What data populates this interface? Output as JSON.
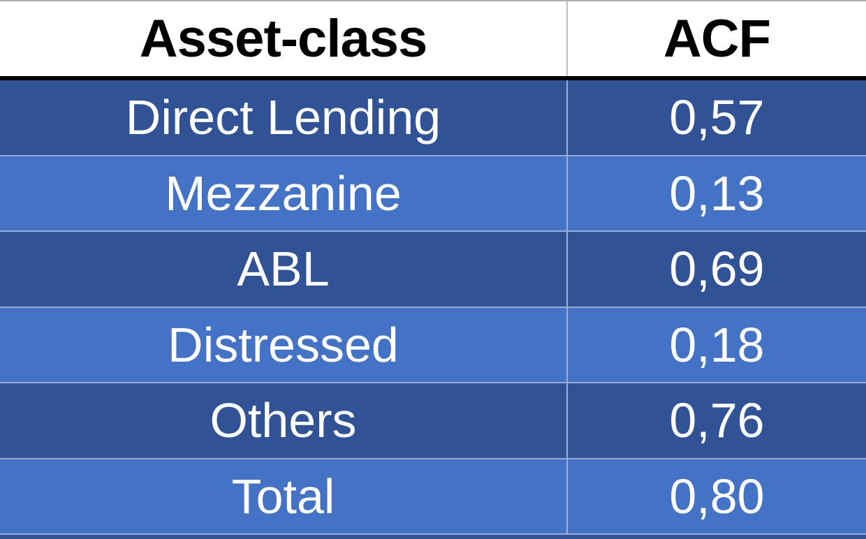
{
  "chart_data": {
    "type": "table",
    "title": "",
    "columns": [
      "Asset-class",
      "ACF"
    ],
    "rows": [
      [
        "Direct Lending",
        "0,57"
      ],
      [
        "Mezzanine",
        "0,13"
      ],
      [
        "ABL",
        "0,69"
      ],
      [
        "Distressed",
        "0,18"
      ],
      [
        "Others",
        "0,76"
      ],
      [
        "Total",
        "0,80"
      ]
    ],
    "categories": [
      "Direct Lending",
      "Mezzanine",
      "ABL",
      "Distressed",
      "Others",
      "Total"
    ],
    "values": [
      0.57,
      0.13,
      0.69,
      0.18,
      0.76,
      0.8
    ],
    "value_column_label": "ACF",
    "decimal_separator": ","
  },
  "colors": {
    "header_bg": "#ffffff",
    "header_text": "#000000",
    "rule": "#000000",
    "dark_row": "#315396",
    "light_row": "#4472C4",
    "row_text": "#ffffff",
    "row_divider": "#98ACD8",
    "col_divider": "#9CB0DB",
    "header_divider": "#BDBDBD",
    "top_border": "#ACACAC"
  }
}
